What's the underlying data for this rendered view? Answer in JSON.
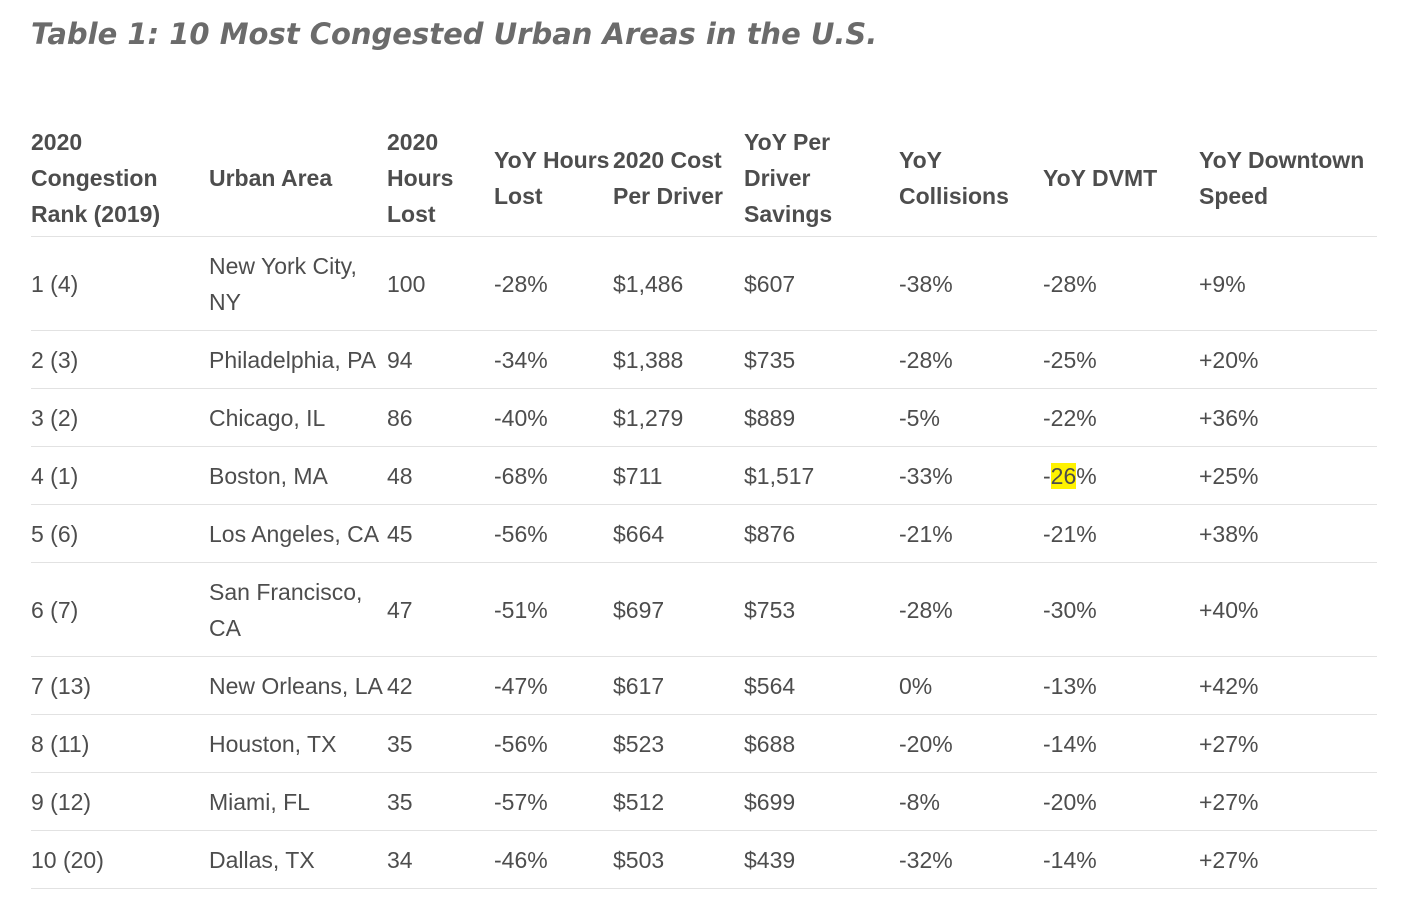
{
  "title": "Table 1: 10 Most Congested Urban Areas in the U.S.",
  "table": {
    "headers": [
      [
        "2020",
        "Congestion",
        "Rank (2019)"
      ],
      [
        "Urban Area"
      ],
      [
        "2020",
        "Hours",
        "Lost"
      ],
      [
        "YoY Hours",
        "Lost"
      ],
      [
        "2020 Cost",
        "Per Driver"
      ],
      [
        "YoY Per Driver",
        "Savings"
      ],
      [
        "YoY",
        "Collisions"
      ],
      [
        "YoY DVMT"
      ],
      [
        "YoY Downtown",
        "Speed"
      ]
    ],
    "rows": [
      {
        "rank": "1 (4)",
        "area": [
          "New York City,",
          "NY"
        ],
        "hours": "100",
        "yoy_hours": "-28%",
        "cost": "$1,486",
        "savings": "$607",
        "collisions": "-38%",
        "dvmt": "-28%",
        "speed": "+9%"
      },
      {
        "rank": "2 (3)",
        "area": [
          "Philadelphia, PA"
        ],
        "hours": "94",
        "yoy_hours": "-34%",
        "cost": "$1,388",
        "savings": "$735",
        "collisions": "-28%",
        "dvmt": "-25%",
        "speed": "+20%"
      },
      {
        "rank": "3 (2)",
        "area": [
          "Chicago, IL"
        ],
        "hours": "86",
        "yoy_hours": "-40%",
        "cost": "$1,279",
        "savings": "$889",
        "collisions": "-5%",
        "dvmt": "-22%",
        "speed": "+36%"
      },
      {
        "rank": "4 (1)",
        "area": [
          "Boston, MA"
        ],
        "hours": "48",
        "yoy_hours": "-68%",
        "cost": "$711",
        "savings": "$1,517",
        "collisions": "-33%",
        "dvmt": "-26%",
        "dvmt_highlight": "26",
        "speed": "+25%"
      },
      {
        "rank": "5 (6)",
        "area": [
          "Los Angeles, CA"
        ],
        "hours": "45",
        "yoy_hours": "-56%",
        "cost": "$664",
        "savings": "$876",
        "collisions": "-21%",
        "dvmt": "-21%",
        "speed": "+38%"
      },
      {
        "rank": "6 (7)",
        "area": [
          "San Francisco,",
          "CA"
        ],
        "hours": "47",
        "yoy_hours": "-51%",
        "cost": "$697",
        "savings": "$753",
        "collisions": "-28%",
        "dvmt": "-30%",
        "speed": "+40%"
      },
      {
        "rank": "7 (13)",
        "area": [
          "New Orleans, LA"
        ],
        "hours": "42",
        "yoy_hours": "-47%",
        "cost": "$617",
        "savings": "$564",
        "collisions": "0%",
        "dvmt": "-13%",
        "speed": "+42%"
      },
      {
        "rank": "8 (11)",
        "area": [
          "Houston, TX"
        ],
        "hours": "35",
        "yoy_hours": "-56%",
        "cost": "$523",
        "savings": "$688",
        "collisions": "-20%",
        "dvmt": "-14%",
        "speed": "+27%"
      },
      {
        "rank": "9 (12)",
        "area": [
          "Miami, FL"
        ],
        "hours": "35",
        "yoy_hours": "-57%",
        "cost": "$512",
        "savings": "$699",
        "collisions": "-8%",
        "dvmt": "-20%",
        "speed": "+27%"
      },
      {
        "rank": "10 (20)",
        "area": [
          "Dallas, TX"
        ],
        "hours": "34",
        "yoy_hours": "-46%",
        "cost": "$503",
        "savings": "$439",
        "collisions": "-32%",
        "dvmt": "-14%",
        "speed": "+27%"
      }
    ],
    "highlight_color": "#fff200"
  }
}
